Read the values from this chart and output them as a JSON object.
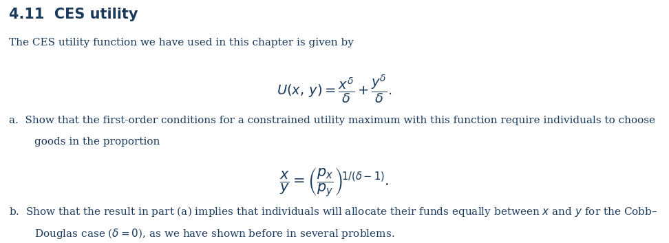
{
  "background_color": "#ffffff",
  "title": "4.11  CES utility",
  "title_color": "#1a3a5c",
  "title_fontsize": 15,
  "body_color": "#1a3a5c",
  "body_fontsize": 11,
  "math_fontsize": 14,
  "line1": "The CES utility function we have used in this chapter is given by",
  "part_a1": "a.  Show that the first-order conditions for a constrained utility maximum with this function require individuals to choose",
  "part_a2": "goods in the proportion",
  "part_b1": "b.  Show that the result in part (a) implies that individuals will allocate their funds equally between ",
  "part_b1_italic_x": "x",
  "part_b1_mid": " and ",
  "part_b1_italic_y": "y",
  "part_b1_end": " for the Cobb–",
  "part_b2": "Douglas case (",
  "part_b2_math": "\\u03b4 = 0",
  "part_b2_end": "), as we have shown before in several problems."
}
